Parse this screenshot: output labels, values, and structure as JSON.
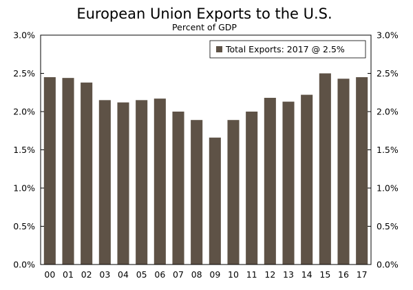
{
  "chart_data": {
    "type": "bar",
    "title": "European Union Exports to the U.S.",
    "subtitle": "Percent of GDP",
    "categories": [
      "00",
      "01",
      "02",
      "03",
      "04",
      "05",
      "06",
      "07",
      "08",
      "09",
      "10",
      "11",
      "12",
      "13",
      "14",
      "15",
      "16",
      "17"
    ],
    "series": [
      {
        "name": "Total Exports: 2017 @ 2.5%",
        "values": [
          2.45,
          2.44,
          2.38,
          2.15,
          2.12,
          2.15,
          2.17,
          2.0,
          1.89,
          1.66,
          1.89,
          2.0,
          2.18,
          2.13,
          2.22,
          2.5,
          2.43,
          2.45
        ]
      }
    ],
    "ylim": [
      0,
      3.0
    ],
    "yticks": [
      "0.0%",
      "0.5%",
      "1.0%",
      "1.5%",
      "2.0%",
      "2.5%",
      "3.0%"
    ],
    "ytick_values": [
      0,
      0.5,
      1.0,
      1.5,
      2.0,
      2.5,
      3.0
    ],
    "xlabel": "",
    "ylabel": "",
    "legend_position": "top-right",
    "grid": false,
    "colors": {
      "bar": "#5e5246",
      "axis": "#000000"
    }
  }
}
